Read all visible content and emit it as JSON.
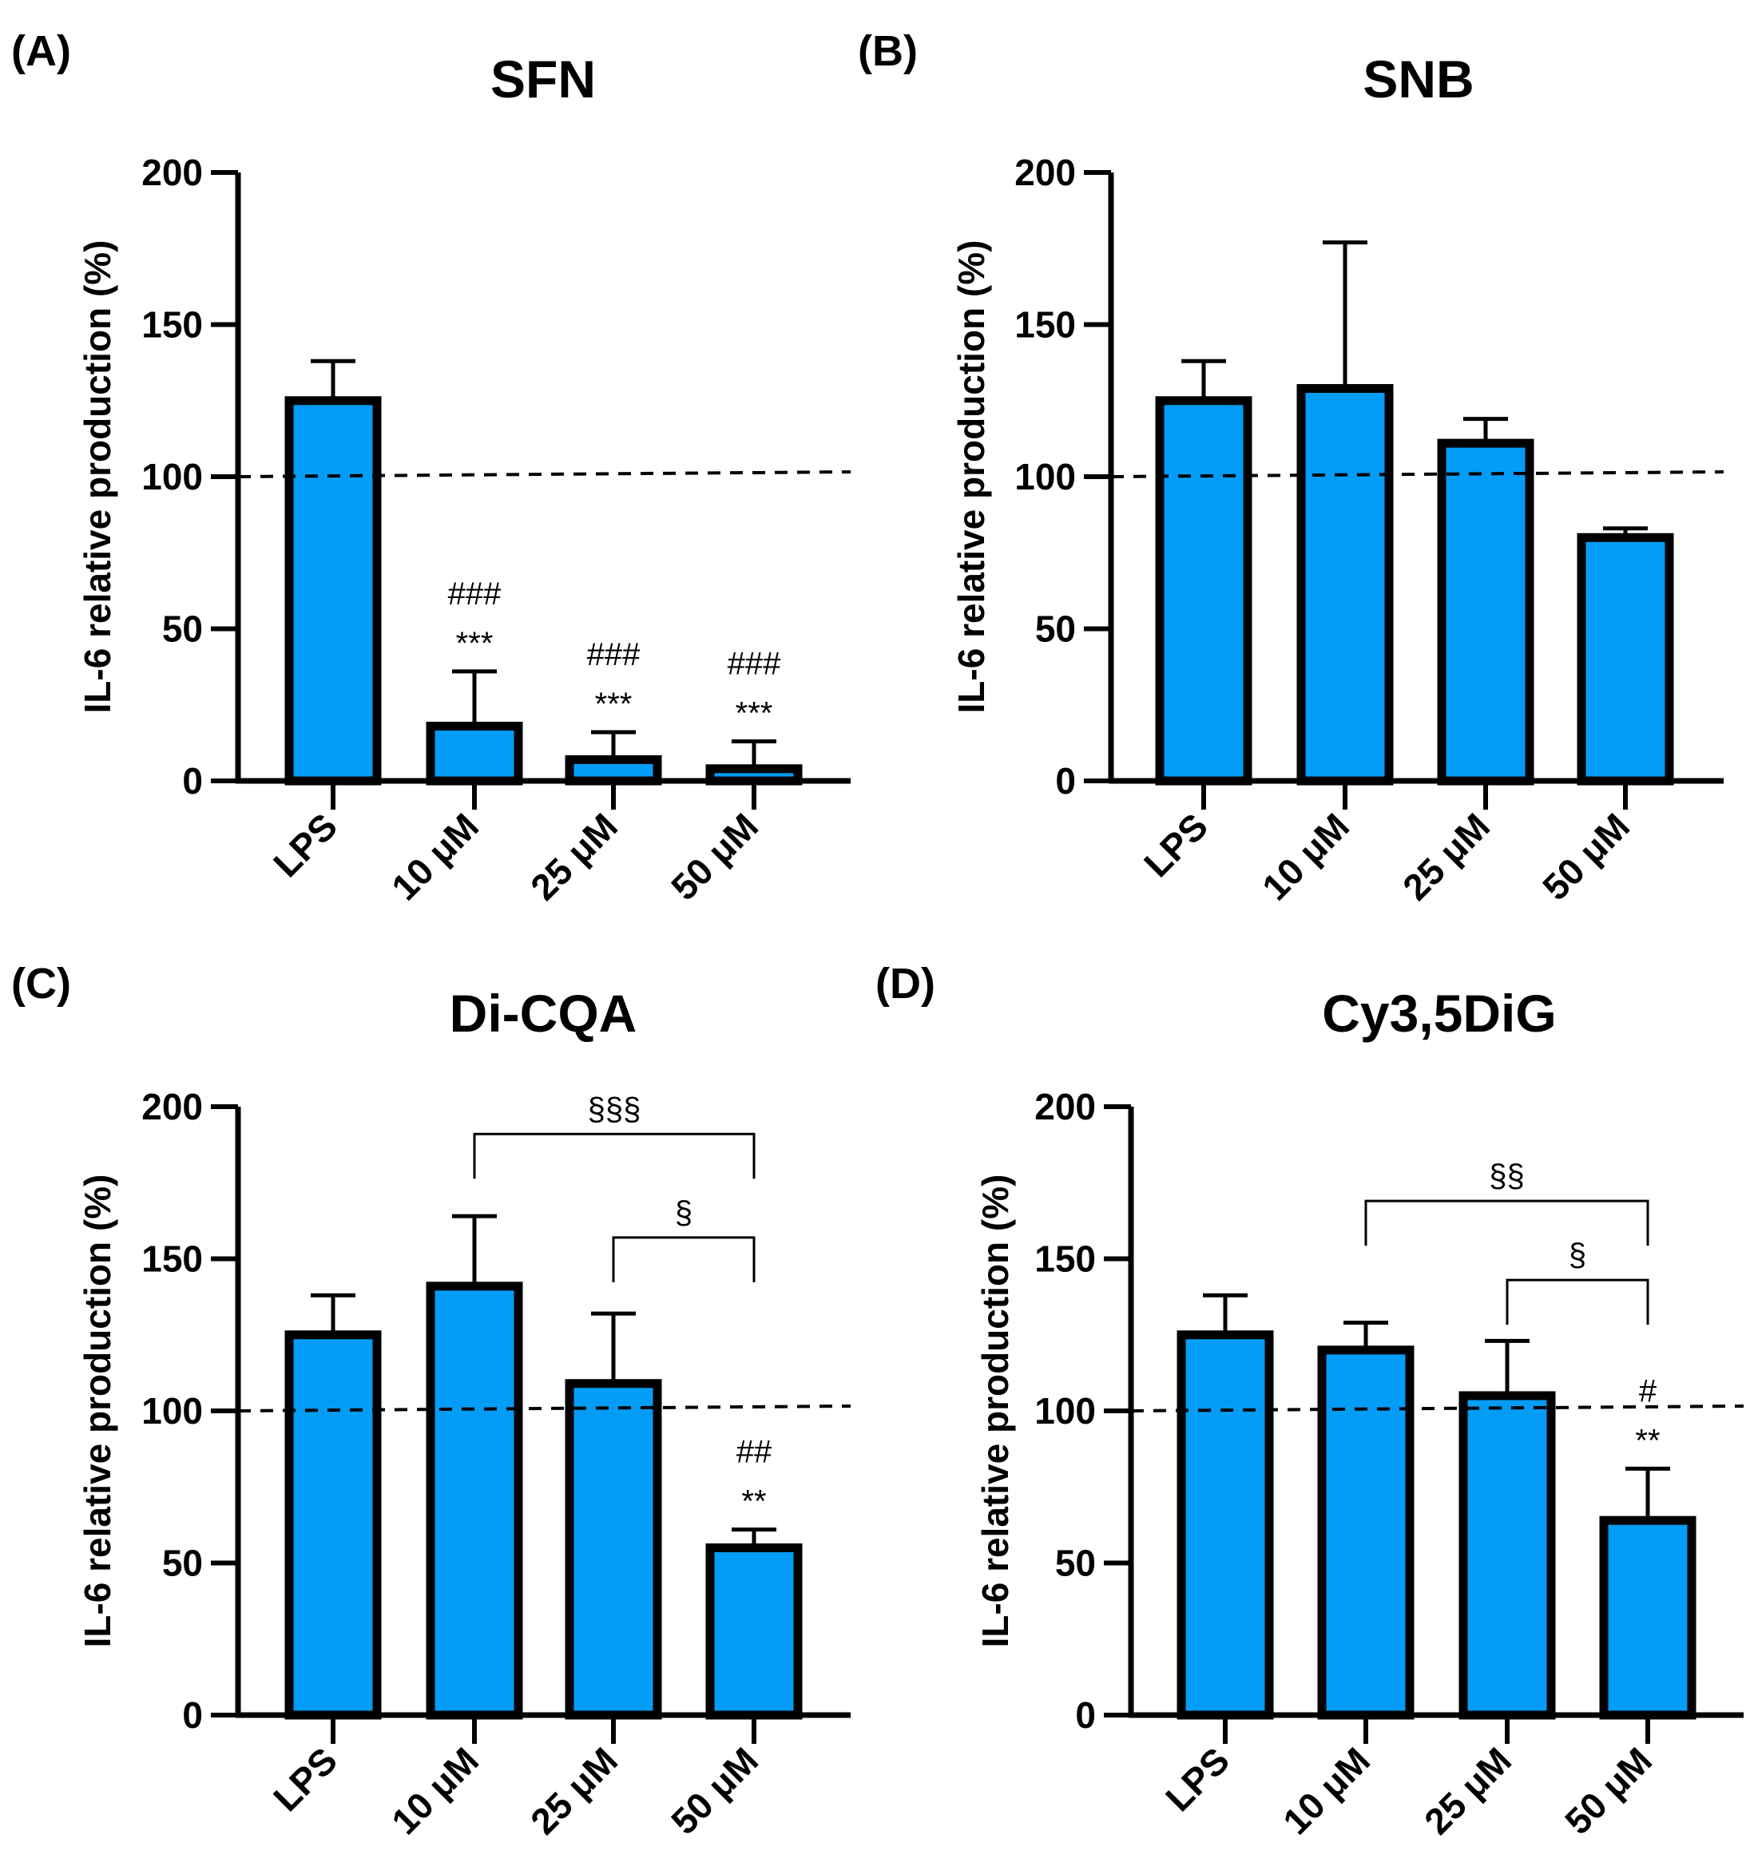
{
  "chart_data": [
    {
      "type": "bar",
      "panel": "(A)",
      "title": "SFN",
      "ylabel": "IL-6 relative production (%)",
      "xlabel": "",
      "categories": [
        "LPS",
        "10 μM",
        "25 μM",
        "50 μM"
      ],
      "values": [
        125,
        18,
        7,
        4
      ],
      "errors": [
        13,
        18,
        9,
        9
      ],
      "ylim": [
        0,
        200
      ],
      "yticks": [
        "0",
        "50",
        "100",
        "150",
        "200"
      ],
      "reference_line": 100,
      "bar_color": "#039cf6",
      "annotations": [
        {
          "category": 1,
          "lines": [
            "###",
            "***"
          ]
        },
        {
          "category": 2,
          "lines": [
            "###",
            "***"
          ]
        },
        {
          "category": 3,
          "lines": [
            "###",
            "***"
          ]
        }
      ],
      "brackets": []
    },
    {
      "type": "bar",
      "panel": "(B)",
      "title": "SNB",
      "ylabel": "IL-6 relative production (%)",
      "xlabel": "",
      "categories": [
        "LPS",
        "10 μM",
        "25 μM",
        "50 μM"
      ],
      "values": [
        125,
        129,
        111,
        80
      ],
      "errors": [
        13,
        48,
        8,
        3
      ],
      "ylim": [
        0,
        200
      ],
      "yticks": [
        "0",
        "50",
        "100",
        "150",
        "200"
      ],
      "reference_line": 100,
      "bar_color": "#039cf6",
      "annotations": [],
      "brackets": []
    },
    {
      "type": "bar",
      "panel": "(C)",
      "title": "Di-CQA",
      "ylabel": "IL-6 relative production (%)",
      "xlabel": "",
      "categories": [
        "LPS",
        "10 μM",
        "25 μM",
        "50 μM"
      ],
      "values": [
        125,
        141,
        109,
        55
      ],
      "errors": [
        13,
        23,
        23,
        6
      ],
      "ylim": [
        0,
        200
      ],
      "yticks": [
        "0",
        "50",
        "100",
        "150",
        "200"
      ],
      "reference_line": 100,
      "bar_color": "#039cf6",
      "annotations": [
        {
          "category": 3,
          "lines": [
            "##",
            "**"
          ]
        }
      ],
      "brackets": [
        {
          "from": 1,
          "to": 3,
          "level": 191,
          "label": "§§§"
        },
        {
          "from": 2,
          "to": 3,
          "level": 157,
          "label": "§"
        }
      ]
    },
    {
      "type": "bar",
      "panel": "(D)",
      "title": "Cy3,5DiG",
      "ylabel": "IL-6 relative production (%)",
      "xlabel": "",
      "categories": [
        "LPS",
        "10 μM",
        "25 μM",
        "50 μM"
      ],
      "values": [
        125,
        120,
        105,
        64
      ],
      "errors": [
        13,
        9,
        18,
        17
      ],
      "ylim": [
        0,
        200
      ],
      "yticks": [
        "0",
        "50",
        "100",
        "150",
        "200"
      ],
      "reference_line": 100,
      "bar_color": "#039cf6",
      "annotations": [
        {
          "category": 3,
          "lines": [
            "#",
            "**"
          ]
        }
      ],
      "brackets": [
        {
          "from": 1,
          "to": 3,
          "level": 169,
          "label": "§§"
        },
        {
          "from": 2,
          "to": 3,
          "level": 143,
          "label": "§"
        }
      ]
    }
  ]
}
